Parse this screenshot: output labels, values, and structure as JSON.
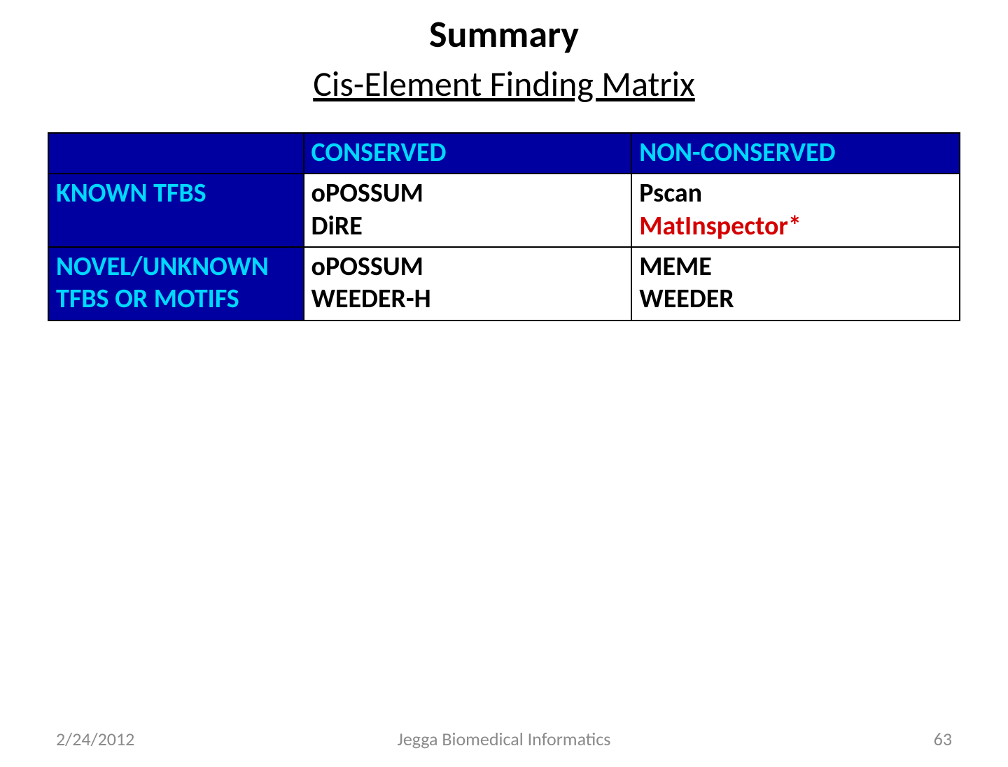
{
  "title": "Summary",
  "subtitle": "Cis-Element Finding Matrix",
  "colors": {
    "header_bg": "#0000a0",
    "header_text": "#00d8ff",
    "cell_bg": "#ffffff",
    "cell_text": "#000000",
    "accent_red": "#d40000",
    "footer_text": "#8a8a8a",
    "page_bg": "#ffffff"
  },
  "table": {
    "type": "table",
    "column_widths_pct": [
      28,
      36,
      36
    ],
    "border_color": "#000000",
    "font_size_pt": 28,
    "header": {
      "row_label_blank": "",
      "col1": "CONSERVED",
      "col2": "NON-CONSERVED"
    },
    "rows": [
      {
        "label": "KNOWN TFBS",
        "conserved": {
          "line1": "oPOSSUM",
          "line2": "DiRE"
        },
        "nonconserved": {
          "line1": "Pscan",
          "line2": "MatInspector*",
          "line2_red": true
        }
      },
      {
        "label_line1": "NOVEL/UNKNOWN",
        "label_line2": "TFBS OR MOTIFS",
        "conserved": {
          "line1": "oPOSSUM",
          "line2": "WEEDER-H"
        },
        "nonconserved": {
          "line1": "MEME",
          "line2": "WEEDER"
        }
      }
    ]
  },
  "footer": {
    "date": "2/24/2012",
    "center": "Jegga Biomedical Informatics",
    "page": "63"
  }
}
